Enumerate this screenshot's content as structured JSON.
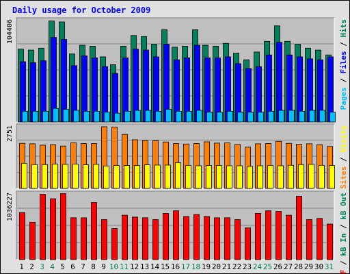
{
  "title": "Daily usage for October 2009",
  "colors": {
    "hits": "#00805c",
    "files": "#0000ff",
    "pages": "#00c0ff",
    "visits": "#ffff00",
    "sites": "#ff8000",
    "kbin": "#ff0000",
    "kbout": "#00c0ff",
    "weekend_label": "#00805c",
    "weekday_label": "#000000"
  },
  "chart_data": [
    {
      "type": "bar",
      "name": "hits-files-pages",
      "y_tick_label": "104406",
      "ylim": [
        0,
        104406
      ],
      "right_label": [
        {
          "text": "Pages",
          "color": "#00c0ff"
        },
        {
          "text": " / ",
          "color": "#000000"
        },
        {
          "text": "Files",
          "color": "#0000ff"
        },
        {
          "text": " / ",
          "color": "#000000"
        },
        {
          "text": "Hits",
          "color": "#00805c"
        }
      ],
      "series": [
        {
          "name": "Hits",
          "color": "#00805c",
          "values": [
            75000,
            74000,
            76000,
            104000,
            103000,
            70000,
            79000,
            78000,
            67000,
            59000,
            78000,
            89000,
            88000,
            80000,
            95000,
            77000,
            78000,
            95000,
            79000,
            78000,
            81000,
            71000,
            64000,
            72000,
            83000,
            99000,
            83000,
            80000,
            76000,
            74000,
            69000
          ]
        },
        {
          "name": "Files",
          "color": "#0000ff",
          "values": [
            62000,
            61000,
            63000,
            87000,
            85000,
            58000,
            68000,
            66000,
            57000,
            50000,
            66000,
            75000,
            74000,
            67000,
            80000,
            64000,
            66000,
            79000,
            66000,
            66000,
            67000,
            60000,
            55000,
            57000,
            69000,
            82000,
            69000,
            67000,
            65000,
            64000,
            67000
          ]
        },
        {
          "name": "Pages",
          "color": "#00c0ff",
          "values": [
            11000,
            11000,
            11000,
            14000,
            13000,
            12000,
            11000,
            11000,
            10000,
            9000,
            11000,
            12000,
            12000,
            11000,
            13000,
            11000,
            11000,
            12000,
            10000,
            10000,
            11000,
            10000,
            10000,
            10000,
            11000,
            12000,
            12000,
            11000,
            12000,
            12000,
            10000
          ]
        }
      ]
    },
    {
      "type": "bar",
      "name": "visits-sites",
      "y_tick_label": "2751",
      "ylim": [
        0,
        2751
      ],
      "right_label": [
        {
          "text": "Sites",
          "color": "#ff8000"
        },
        {
          "text": " / ",
          "color": "#000000"
        },
        {
          "text": "Visits",
          "color": "#ffff00"
        }
      ],
      "series": [
        {
          "name": "Sites",
          "color": "#ff8000",
          "values": [
            2010,
            1990,
            1930,
            1950,
            1890,
            2040,
            2000,
            2000,
            2750,
            2740,
            2410,
            2170,
            2140,
            2130,
            2070,
            2000,
            1980,
            2000,
            2080,
            2020,
            2030,
            1960,
            1840,
            1990,
            2000,
            2100,
            2010,
            1970,
            1990,
            1950,
            1870
          ]
        },
        {
          "name": "Visits",
          "color": "#ffff00",
          "values": [
            1120,
            1060,
            1060,
            1080,
            1070,
            1080,
            1050,
            1070,
            1000,
            1020,
            1020,
            1020,
            1050,
            1040,
            1040,
            1150,
            1020,
            1010,
            1020,
            1020,
            1010,
            1010,
            980,
            1010,
            1020,
            1010,
            1030,
            1060,
            1070,
            1030,
            1020
          ]
        }
      ]
    },
    {
      "type": "bar",
      "name": "kbin-kbout",
      "y_tick_label": "1036227",
      "ylim": [
        0,
        1036227
      ],
      "right_label": [
        {
          "text": "kB F",
          "color": "#ff0000"
        },
        {
          "text": " / ",
          "color": "#000000"
        },
        {
          "text": "kB In",
          "color": "#00805c"
        },
        {
          "text": " / ",
          "color": "#000000"
        },
        {
          "text": "kB Out",
          "color": "#00805c"
        }
      ],
      "series": [
        {
          "name": "kB F",
          "color": "#ff0000",
          "values": [
            740000,
            590000,
            1030000,
            960000,
            1040000,
            660000,
            660000,
            900000,
            630000,
            490000,
            700000,
            670000,
            660000,
            630000,
            730000,
            770000,
            680000,
            710000,
            680000,
            660000,
            660000,
            630000,
            500000,
            730000,
            770000,
            760000,
            700000,
            1000000,
            630000,
            650000,
            560000
          ]
        }
      ]
    }
  ],
  "x_labels": [
    "1",
    "2",
    "3",
    "4",
    "5",
    "6",
    "7",
    "8",
    "9",
    "10",
    "11",
    "12",
    "13",
    "14",
    "15",
    "16",
    "17",
    "18",
    "19",
    "20",
    "21",
    "22",
    "23",
    "24",
    "25",
    "26",
    "27",
    "28",
    "29",
    "30",
    "31"
  ],
  "weekend_days": [
    "3",
    "4",
    "10",
    "11",
    "17",
    "18",
    "24",
    "25",
    "31"
  ]
}
